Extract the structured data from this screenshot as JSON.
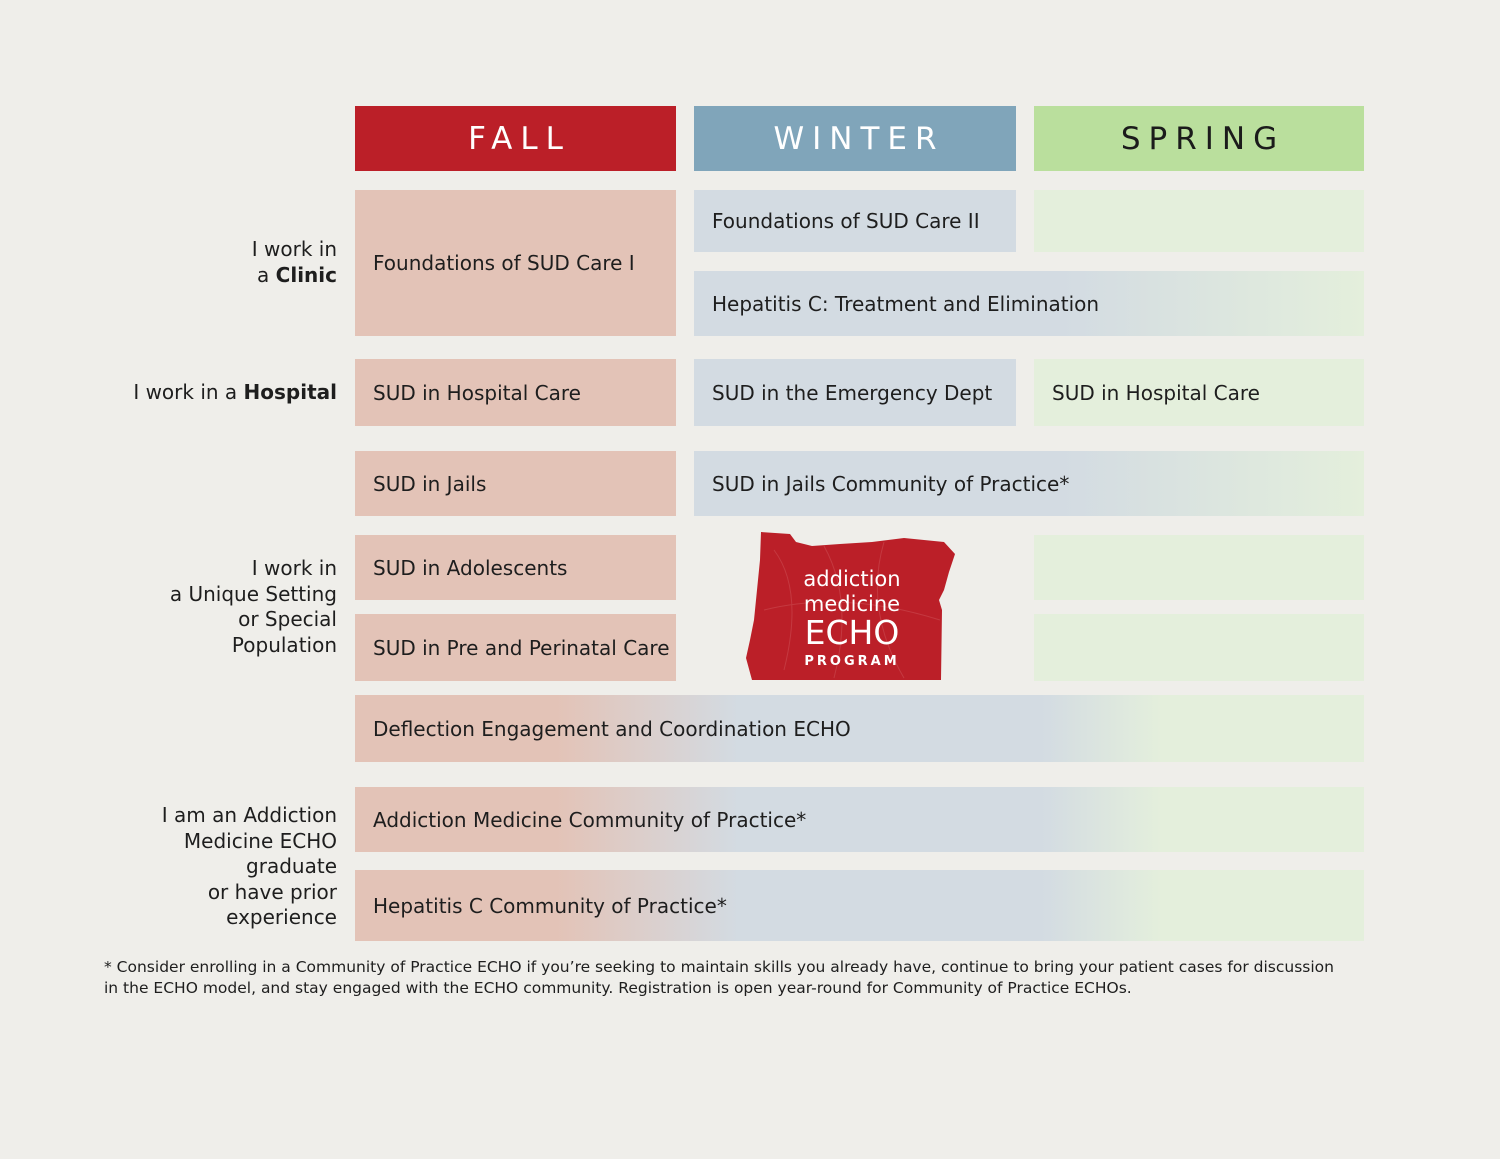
{
  "headers": {
    "fall": "FALL",
    "winter": "WINTER",
    "spring": "SPRING"
  },
  "row_labels": {
    "clinic_prefix": "I work in",
    "clinic_line2_pre": "a ",
    "clinic_bold": "Clinic",
    "hospital_pre": "I work in a ",
    "hospital_bold": "Hospital",
    "unique_line1": "I work in",
    "unique_line2": "a Unique Setting",
    "unique_line3": "or Special",
    "unique_line4": "Population",
    "graduate_line1": "I am an Addiction",
    "graduate_line2": "Medicine ECHO",
    "graduate_line3": "graduate",
    "graduate_line4": "or have prior",
    "graduate_line5": "experience"
  },
  "courses": {
    "foundations_1": "Foundations of SUD Care I",
    "foundations_2": "Foundations of SUD Care II",
    "hep_c_treatment": "Hepatitis C: Treatment and Elimination",
    "hospital_fall": "SUD in Hospital Care",
    "emergency": "SUD in the Emergency Dept",
    "hospital_spring": "SUD in Hospital Care",
    "jails": "SUD in Jails",
    "jails_cop": "SUD in Jails Community of Practice*",
    "adolescents": "SUD in Adolescents",
    "perinatal": "SUD in Pre and Perinatal Care",
    "deflection": "Deflection Engagement and Coordination ECHO",
    "addiction_cop": "Addiction Medicine Community of Practice*",
    "hep_c_cop": "Hepatitis C Community of Practice*"
  },
  "logo": {
    "line1": "addiction",
    "line2": "medicine",
    "line3": "ECHO",
    "line4": "PROGRAM",
    "color": "#bb1f28"
  },
  "footnote": {
    "line1": "* Consider enrolling in a Community of Practice ECHO if you’re seeking to maintain skills you already have, continue to bring your patient cases for discussion",
    "line2": "in the ECHO model, and stay engaged with the ECHO community. Registration is open year-round for Community of Practice ECHOs."
  },
  "colors": {
    "fall_header": "#bb1f28",
    "winter_header": "#80a5ba",
    "spring_header": "#badf9d",
    "fall_cell": "#e3c3b7",
    "winter_cell": "#d3dbe2",
    "spring_cell": "#e4efdc",
    "background": "#efeeea"
  }
}
